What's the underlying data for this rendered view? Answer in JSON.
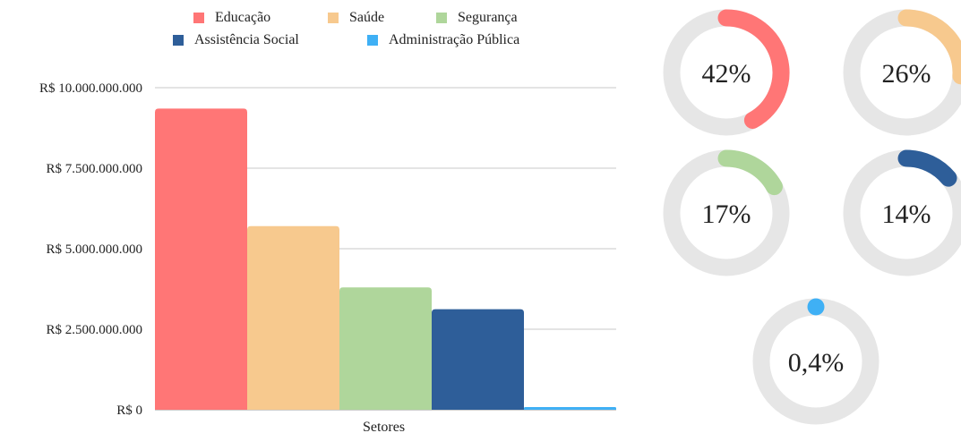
{
  "chart_data": [
    {
      "type": "bar",
      "xlabel": "Setores",
      "ylabel": "",
      "ylim": [
        0,
        10000000000
      ],
      "yticks": [
        {
          "value": 0,
          "label": "R$ 0"
        },
        {
          "value": 2500000000,
          "label": "R$ 2.500.000.000"
        },
        {
          "value": 5000000000,
          "label": "R$ 5.000.000.000"
        },
        {
          "value": 7500000000,
          "label": "R$ 7.500.000.000"
        },
        {
          "value": 10000000000,
          "label": "R$ 10.000.000.000"
        }
      ],
      "grid": true,
      "legend_placement": "top",
      "series": [
        {
          "name": "Educação",
          "value": 9350000000,
          "color": "#ff7676"
        },
        {
          "name": "Saúde",
          "value": 5700000000,
          "color": "#f7c98e"
        },
        {
          "name": "Segurança",
          "value": 3800000000,
          "color": "#afd69b"
        },
        {
          "name": "Assistência Social",
          "value": 3120000000,
          "color": "#2e5e99"
        },
        {
          "name": "Administração Pública",
          "value": 85000000,
          "color": "#3fb0f5"
        }
      ]
    },
    {
      "type": "pie",
      "variant": "donut-gauges",
      "track_color": "#e6e6e6",
      "gauges": [
        {
          "label": "42%",
          "fraction": 0.42,
          "color": "#ff7676"
        },
        {
          "label": "26%",
          "fraction": 0.26,
          "color": "#f7c98e"
        },
        {
          "label": "17%",
          "fraction": 0.17,
          "color": "#afd69b"
        },
        {
          "label": "14%",
          "fraction": 0.14,
          "color": "#2e5e99"
        },
        {
          "label": "0,4%",
          "fraction": 0.004,
          "color": "#3fb0f5"
        }
      ]
    }
  ]
}
